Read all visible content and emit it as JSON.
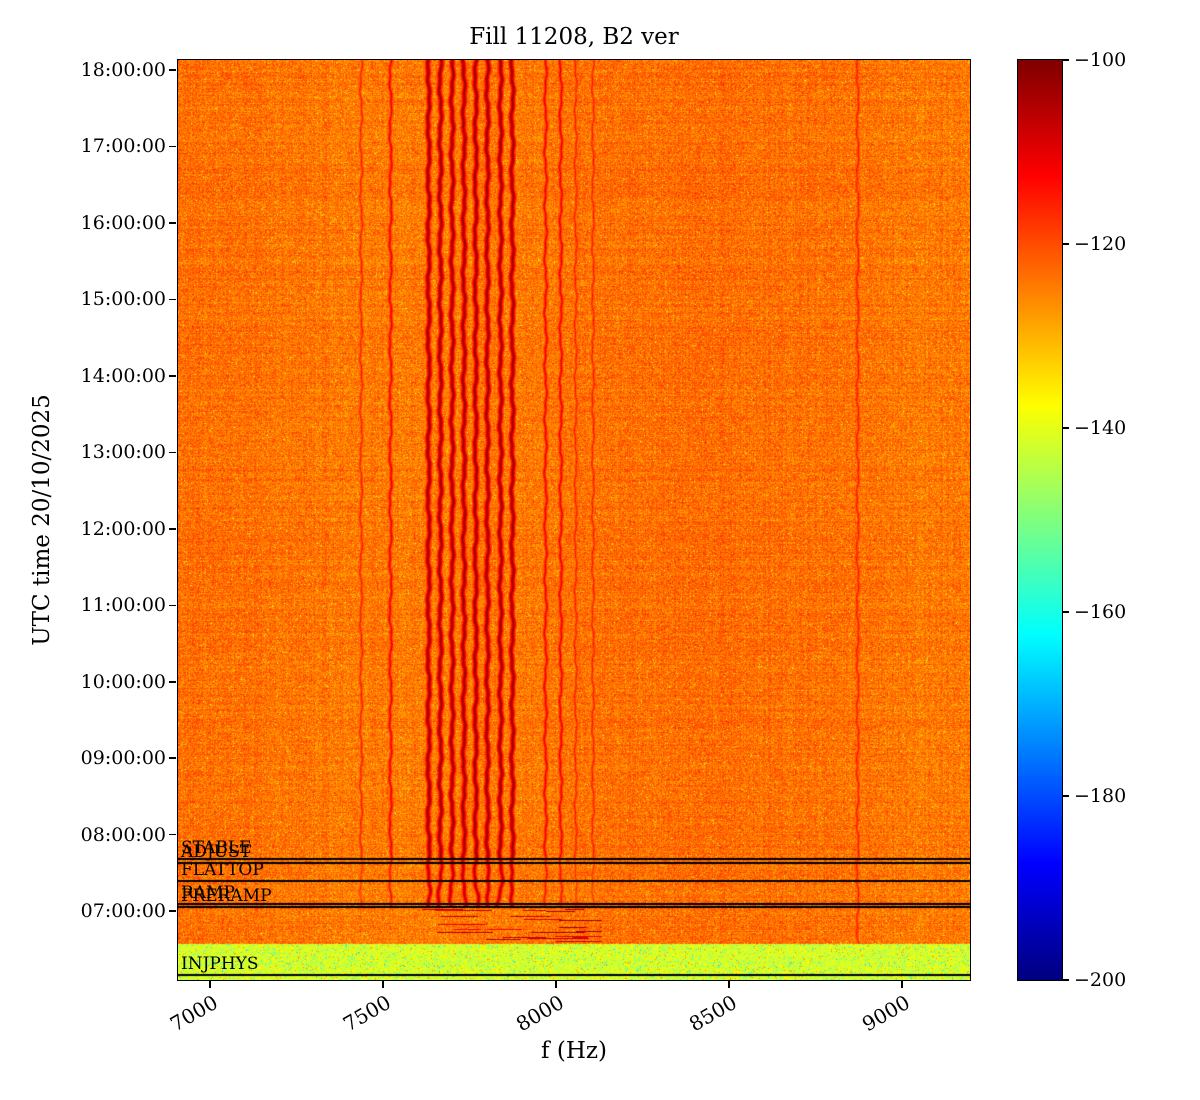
{
  "chart_data": {
    "type": "heatmap",
    "title": "Fill 11208, B2 ver",
    "xlabel": "f (Hz)",
    "ylabel": "UTC time 20/10/2025",
    "xlim": [
      6907,
      9196
    ],
    "x_ticks": [
      "7000",
      "7500",
      "8000",
      "8500",
      "9000"
    ],
    "x_tick_values": [
      7000,
      7500,
      8000,
      8500,
      9000
    ],
    "y_ticks": [
      "18:00:00",
      "17:00:00",
      "16:00:00",
      "15:00:00",
      "14:00:00",
      "13:00:00",
      "12:00:00",
      "11:00:00",
      "10:00:00",
      "09:00:00",
      "08:00:00",
      "07:00:00"
    ],
    "time_top_hours": 18.131,
    "time_bottom_hours": 6.1,
    "colormap": "jet",
    "colorbar": {
      "vmin": -200,
      "vmax": -100,
      "tick_labels": [
        "−100",
        "−120",
        "−140",
        "−160",
        "−180",
        "−200"
      ],
      "tick_values": [
        -100,
        -120,
        -140,
        -160,
        -180,
        -200
      ]
    },
    "noise_floor_db": -124,
    "spectral_lines": {
      "strong_hz": [
        7630,
        7664,
        7698,
        7732,
        7766,
        7800,
        7838,
        7872
      ],
      "medium_hz": [
        7520,
        7968,
        8012
      ],
      "weak_hz": [
        7435,
        8055,
        8105
      ],
      "full_height_weak_hz": [
        8870
      ]
    },
    "beam_modes": [
      {
        "label": "INJPHYS",
        "time_hours": 6.17
      },
      {
        "label": "PRERAMP",
        "time_hours": 7.06
      },
      {
        "label": "RAMP",
        "time_hours": 7.09
      },
      {
        "label": "FLATTOP",
        "time_hours": 7.4
      },
      {
        "label": "ADJUST",
        "time_hours": 7.63
      },
      {
        "label": "STABLE",
        "time_hours": 7.68
      }
    ],
    "regions": {
      "injection_plateau_band": {
        "t_start_hours": 6.1,
        "t_end_hours": 6.58,
        "level_db": -142
      },
      "injection_streaks": {
        "t_start_hours": 6.6,
        "t_end_hours": 7.05,
        "f_start_hz": 7600,
        "f_end_hz": 8130
      }
    }
  }
}
